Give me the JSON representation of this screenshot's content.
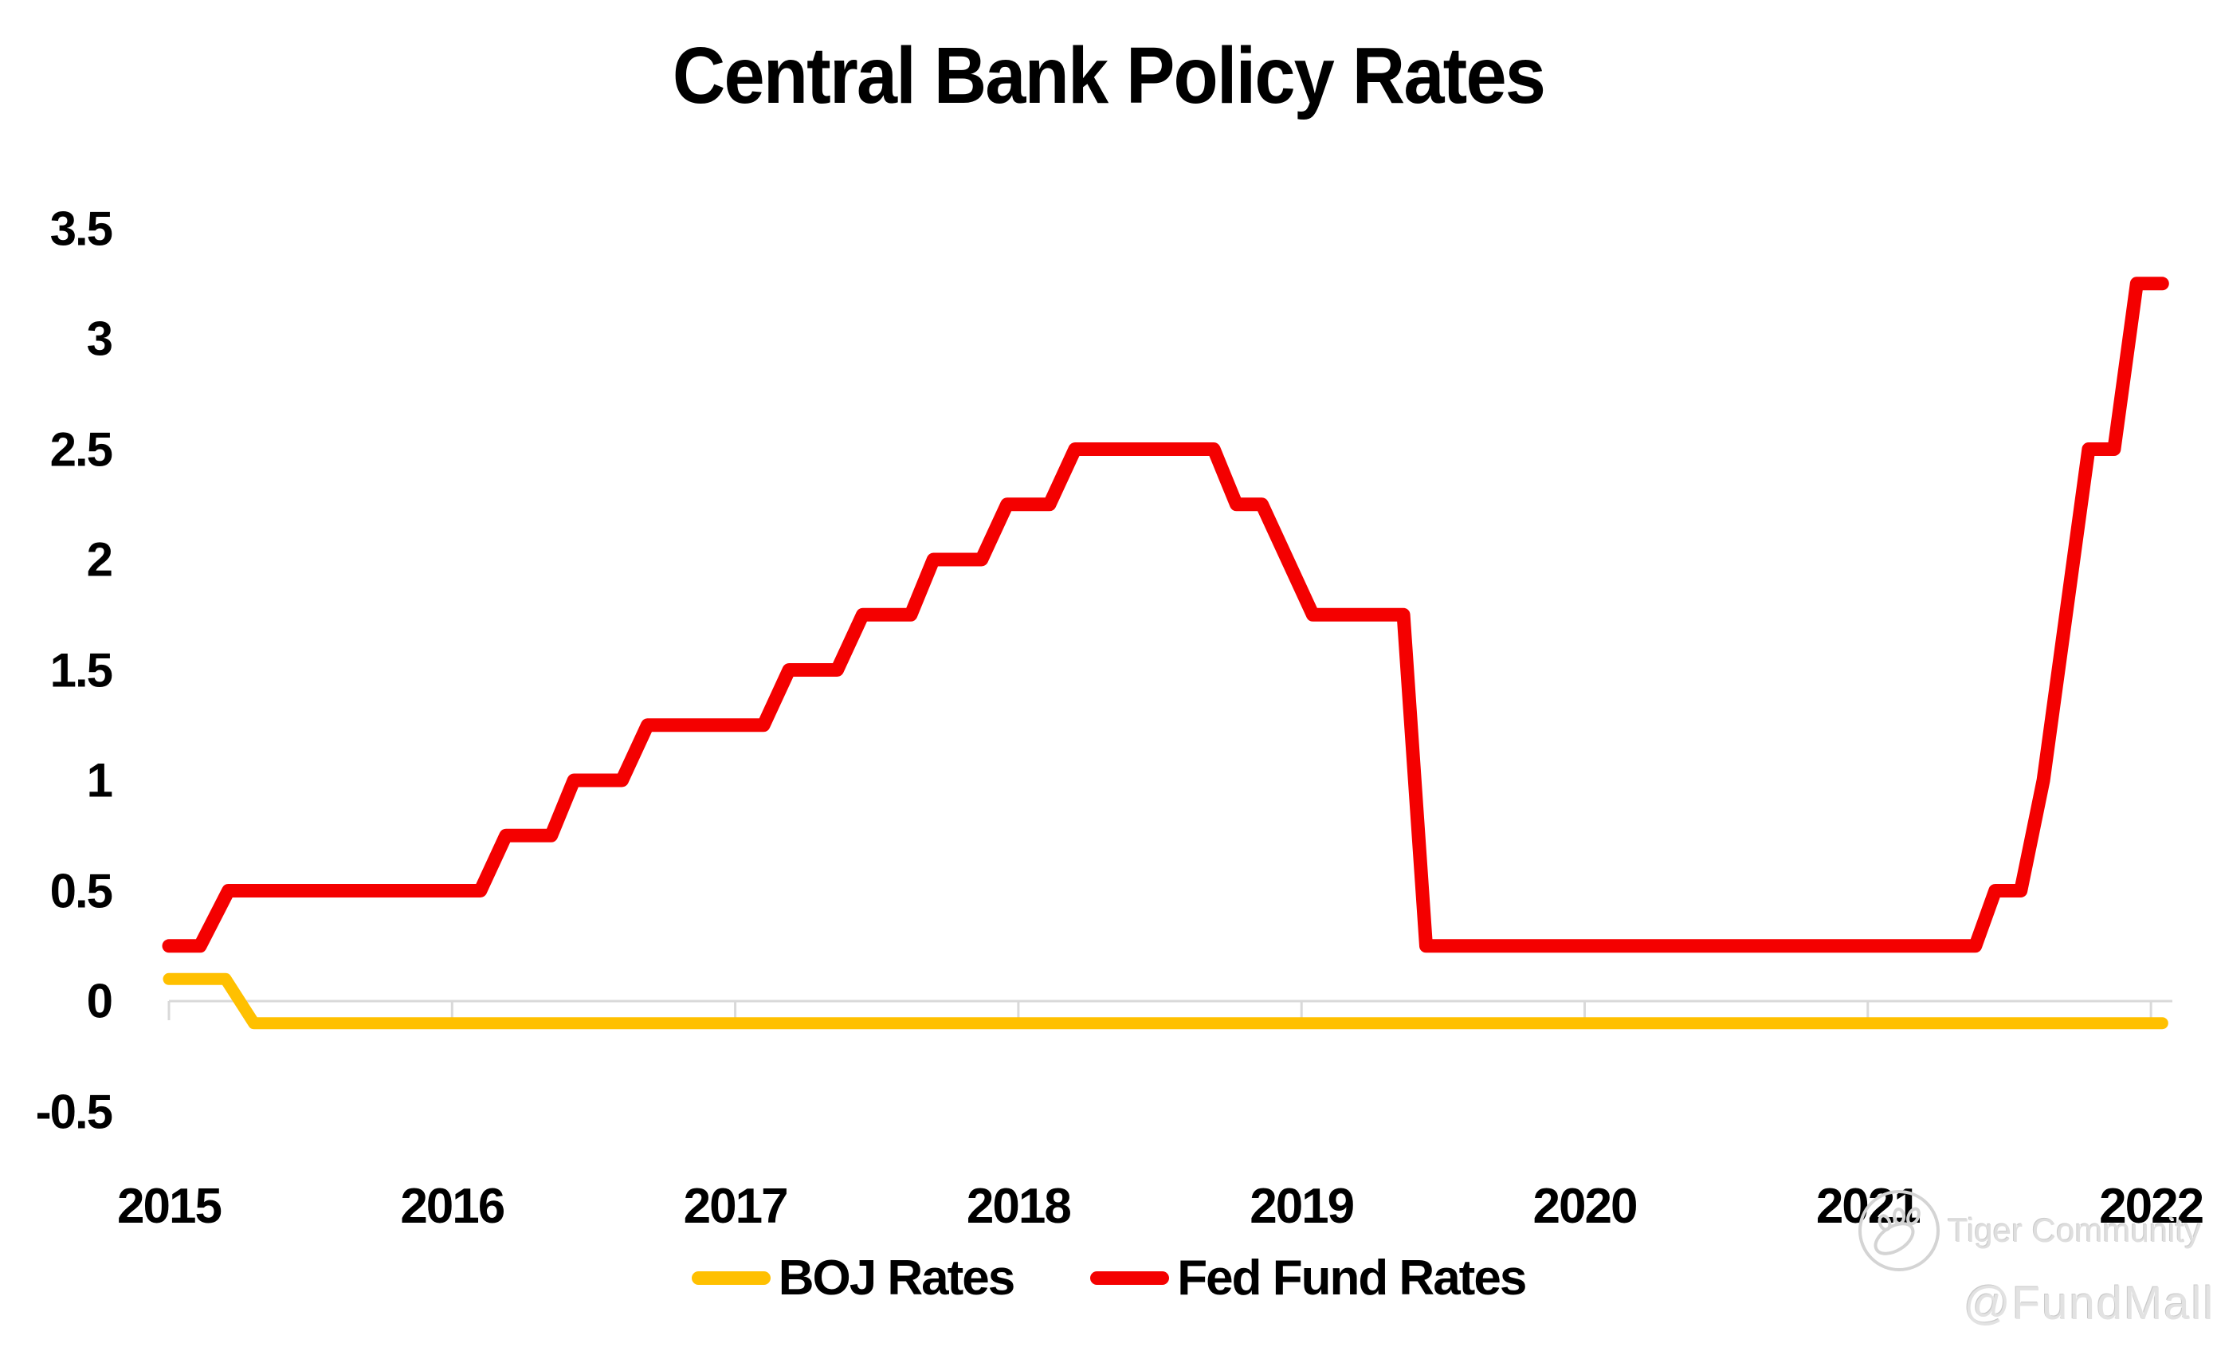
{
  "title": "Central Bank Policy Rates",
  "watermark": {
    "brand": "Tiger Community",
    "handle": "@FundMall"
  },
  "colors": {
    "boj": "#FFC000",
    "fed": "#F40000",
    "grid": "#D9D9D9",
    "text": "#000000",
    "watermark_gray": "#D6D6D6"
  },
  "legend": [
    {
      "id": "boj-rates",
      "label": "BOJ Rates",
      "color": "#FFC000"
    },
    {
      "id": "fed-fund-rates",
      "label": "Fed Fund Rates",
      "color": "#F40000"
    }
  ],
  "chart_data": {
    "type": "line",
    "title": "Central Bank Policy Rates",
    "xlabel": "",
    "ylabel": "",
    "units": "percent",
    "grid": "zero-baseline-only",
    "legend_position": "bottom-center",
    "x_axis": {
      "range": [
        2015,
        2022.1
      ],
      "ticks": [
        {
          "label": "2015",
          "value": 2015
        },
        {
          "label": "2016",
          "value": 2016
        },
        {
          "label": "2017",
          "value": 2017
        },
        {
          "label": "2018",
          "value": 2018
        },
        {
          "label": "2019",
          "value": 2019
        },
        {
          "label": "2020",
          "value": 2020
        },
        {
          "label": "2021",
          "value": 2021
        },
        {
          "label": "2022",
          "value": 2022
        }
      ]
    },
    "y_axis": {
      "range": [
        -0.5,
        3.5
      ],
      "ticks": [
        {
          "label": "3.5",
          "value": 3.5
        },
        {
          "label": "3",
          "value": 3
        },
        {
          "label": "2.5",
          "value": 2.5
        },
        {
          "label": "2",
          "value": 2
        },
        {
          "label": "1.5",
          "value": 1.5
        },
        {
          "label": "1",
          "value": 1
        },
        {
          "label": "0.5",
          "value": 0.5
        },
        {
          "label": "0",
          "value": 0
        },
        {
          "label": "-0.5",
          "value": -0.5
        }
      ]
    },
    "series": [
      {
        "id": "boj-rates",
        "name": "BOJ Rates",
        "color": "#FFC000",
        "stroke_width": 15,
        "points": [
          [
            2015.0,
            0.1
          ],
          [
            2015.2,
            0.1
          ],
          [
            2015.3,
            -0.1
          ],
          [
            2022.04,
            -0.1
          ]
        ]
      },
      {
        "id": "fed-fund-rates",
        "name": "Fed Fund Rates",
        "color": "#F40000",
        "stroke_width": 17,
        "points": [
          [
            2015.0,
            0.25
          ],
          [
            2015.11,
            0.25
          ],
          [
            2015.21,
            0.5
          ],
          [
            2016.1,
            0.5
          ],
          [
            2016.19,
            0.75
          ],
          [
            2016.35,
            0.75
          ],
          [
            2016.43,
            1.0
          ],
          [
            2016.6,
            1.0
          ],
          [
            2016.69,
            1.25
          ],
          [
            2017.1,
            1.25
          ],
          [
            2017.19,
            1.5
          ],
          [
            2017.36,
            1.5
          ],
          [
            2017.45,
            1.75
          ],
          [
            2017.62,
            1.75
          ],
          [
            2017.7,
            2.0
          ],
          [
            2017.87,
            2.0
          ],
          [
            2017.96,
            2.25
          ],
          [
            2018.11,
            2.25
          ],
          [
            2018.2,
            2.5
          ],
          [
            2018.69,
            2.5
          ],
          [
            2018.77,
            2.25
          ],
          [
            2018.86,
            2.25
          ],
          [
            2019.04,
            1.75
          ],
          [
            2019.36,
            1.75
          ],
          [
            2019.44,
            0.25
          ],
          [
            2021.38,
            0.25
          ],
          [
            2021.45,
            0.5
          ],
          [
            2021.54,
            0.5
          ],
          [
            2021.62,
            1.0
          ],
          [
            2021.7,
            1.75
          ],
          [
            2021.78,
            2.5
          ],
          [
            2021.87,
            2.5
          ],
          [
            2021.95,
            3.25
          ],
          [
            2022.04,
            3.25
          ]
        ]
      }
    ]
  }
}
